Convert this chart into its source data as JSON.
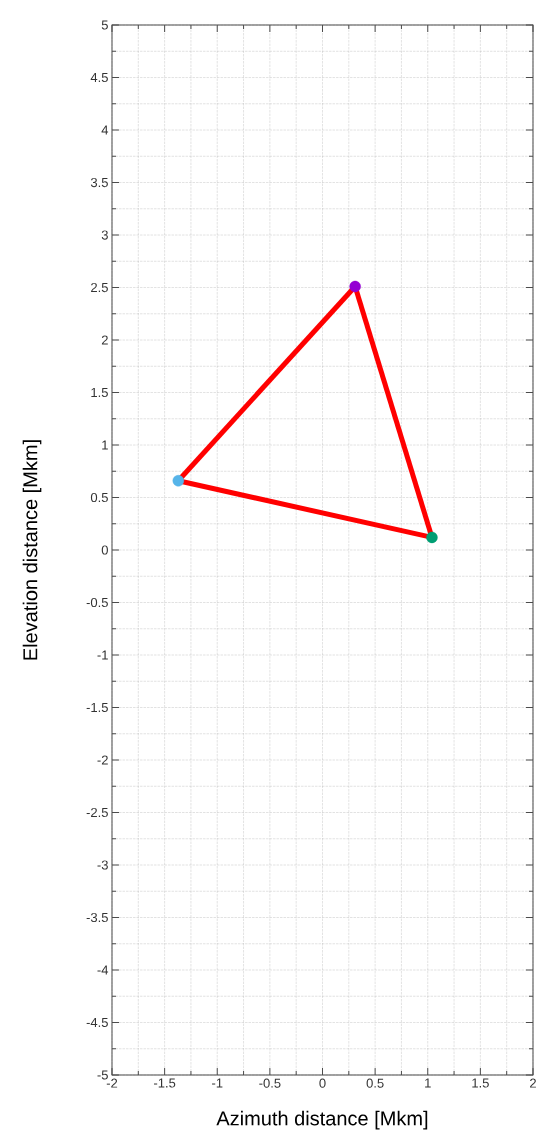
{
  "chart_data": {
    "type": "line",
    "xlabel": "Azimuth distance [Mkm]",
    "ylabel": "Elevation distance [Mkm]",
    "xlim": [
      -2,
      2
    ],
    "ylim": [
      -5,
      5
    ],
    "xticks": [
      -2,
      -1.5,
      -1,
      -0.5,
      0,
      0.5,
      1,
      1.5,
      2
    ],
    "yticks": [
      -5,
      -4.5,
      -4,
      -3.5,
      -3,
      -2.5,
      -2,
      -1.5,
      -1,
      -0.5,
      0,
      0.5,
      1,
      1.5,
      2,
      2.5,
      3,
      3.5,
      4,
      4.5,
      5
    ],
    "grid": true,
    "series": [
      {
        "type": "line",
        "color": "#ff0000",
        "x": [
          -1.37,
          0.31
        ],
        "values": [
          0.66,
          2.51
        ]
      },
      {
        "type": "line",
        "color": "#ff0000",
        "x": [
          0.31,
          1.04
        ],
        "values": [
          2.51,
          0.12
        ]
      },
      {
        "type": "line",
        "color": "#ff0000",
        "x": [
          -1.37,
          1.04
        ],
        "values": [
          0.66,
          0.12
        ]
      },
      {
        "type": "scatter",
        "colors": [
          "#56b4e9",
          "#9400d3",
          "#009e73"
        ],
        "x": [
          -1.37,
          0.31,
          1.04
        ],
        "values": [
          0.66,
          2.51,
          0.12
        ]
      }
    ]
  }
}
